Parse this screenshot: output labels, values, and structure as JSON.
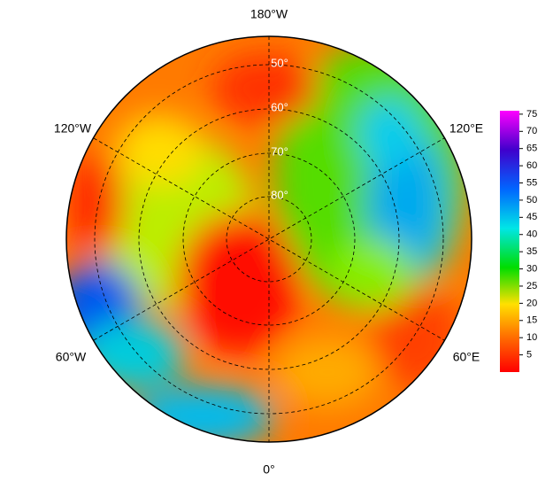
{
  "map": {
    "longitude_labels": [
      "180°W",
      "120°W",
      "120°E",
      "60°W",
      "60°E",
      "0°"
    ],
    "latitude_labels": [
      "50°",
      "60°",
      "70°",
      "80°"
    ],
    "colorbar": {
      "lim": [
        0,
        76
      ],
      "ticks": [
        5,
        10,
        15,
        20,
        25,
        30,
        35,
        40,
        45,
        50,
        55,
        60,
        65,
        70,
        75
      ]
    }
  }
}
